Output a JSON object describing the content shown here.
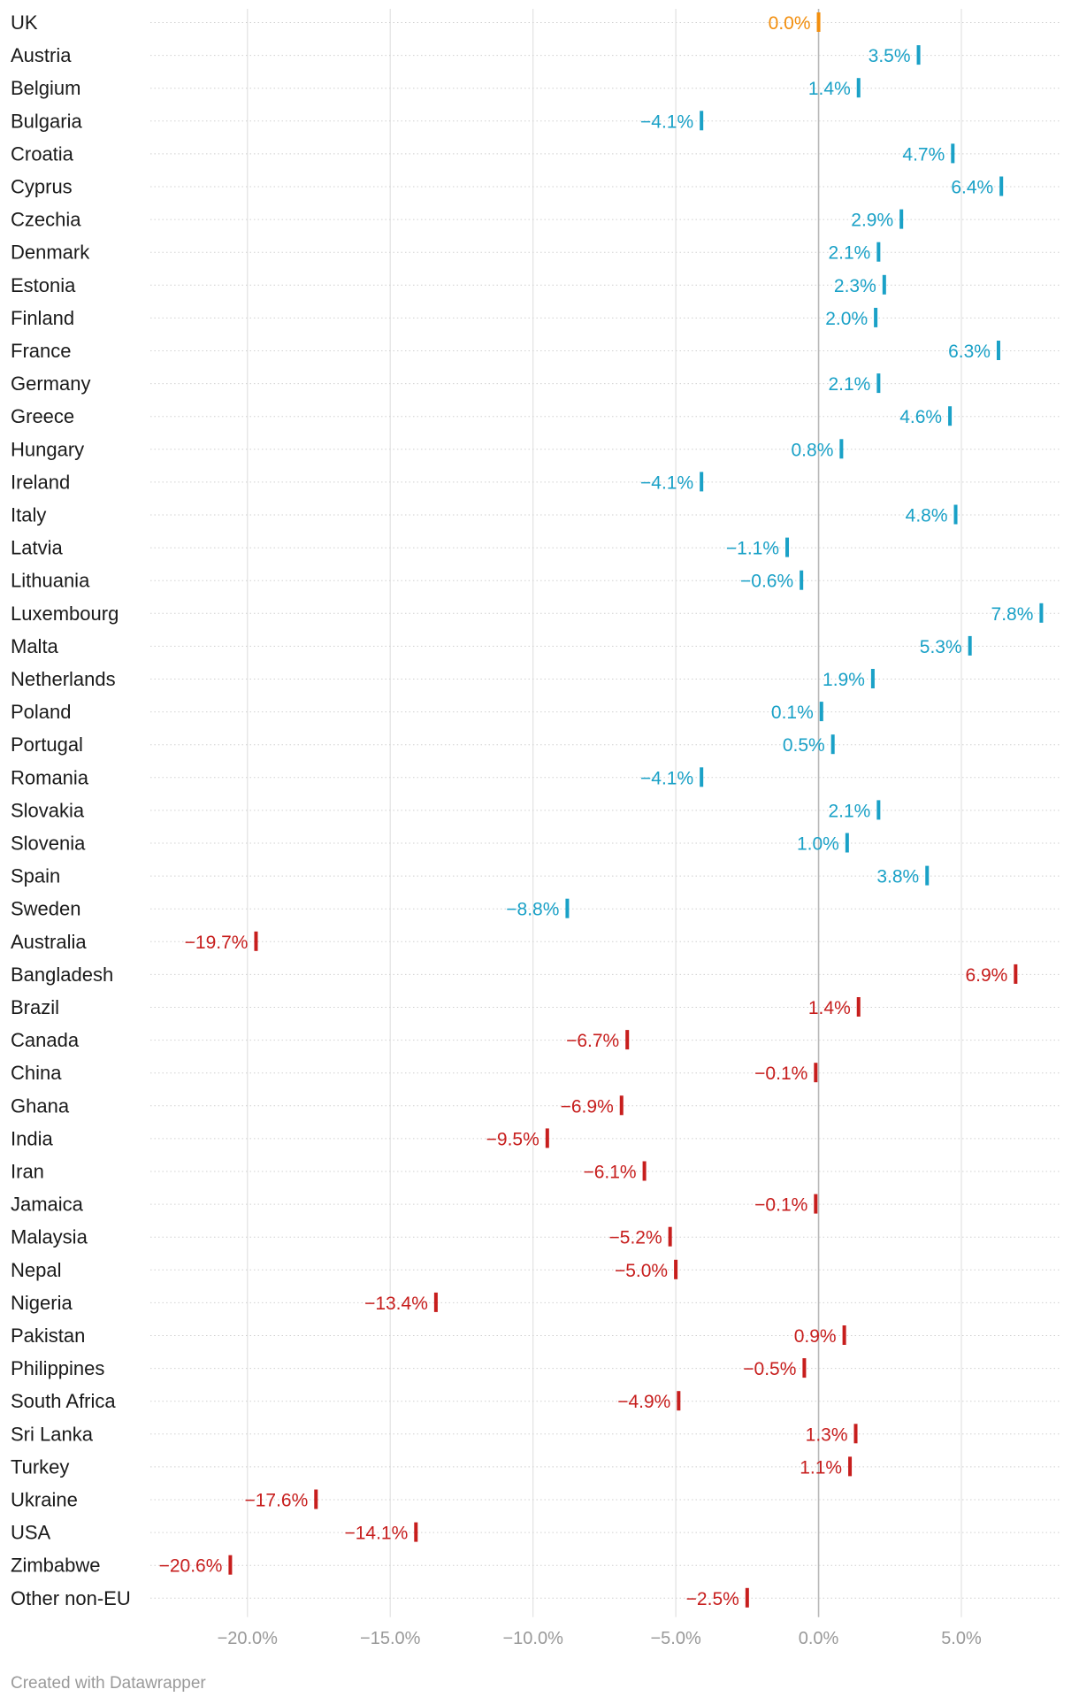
{
  "chart_data": {
    "type": "dot",
    "title": "",
    "xlabel": "",
    "ylabel": "",
    "xlim": [
      -23.4,
      8.5
    ],
    "x_ticks": [
      -20,
      -15,
      -10,
      -5,
      0,
      5
    ],
    "x_tick_labels": [
      "−20.0%",
      "−15.0%",
      "−10.0%",
      "−5.0%",
      "0.0%",
      "5.0%"
    ],
    "grid": true,
    "legend": "none",
    "colors": {
      "uk": "#f28e0d",
      "eu": "#1aa1c7",
      "non_eu": "#c71e1d"
    },
    "rows": [
      {
        "label": "UK",
        "value": 0.0,
        "text": "0.0%",
        "group": "uk"
      },
      {
        "label": "Austria",
        "value": 3.5,
        "text": "3.5%",
        "group": "eu"
      },
      {
        "label": "Belgium",
        "value": 1.4,
        "text": "1.4%",
        "group": "eu"
      },
      {
        "label": "Bulgaria",
        "value": -4.1,
        "text": "−4.1%",
        "group": "eu"
      },
      {
        "label": "Croatia",
        "value": 4.7,
        "text": "4.7%",
        "group": "eu"
      },
      {
        "label": "Cyprus",
        "value": 6.4,
        "text": "6.4%",
        "group": "eu"
      },
      {
        "label": "Czechia",
        "value": 2.9,
        "text": "2.9%",
        "group": "eu"
      },
      {
        "label": "Denmark",
        "value": 2.1,
        "text": "2.1%",
        "group": "eu"
      },
      {
        "label": "Estonia",
        "value": 2.3,
        "text": "2.3%",
        "group": "eu"
      },
      {
        "label": "Finland",
        "value": 2.0,
        "text": "2.0%",
        "group": "eu"
      },
      {
        "label": "France",
        "value": 6.3,
        "text": "6.3%",
        "group": "eu"
      },
      {
        "label": "Germany",
        "value": 2.1,
        "text": "2.1%",
        "group": "eu"
      },
      {
        "label": "Greece",
        "value": 4.6,
        "text": "4.6%",
        "group": "eu"
      },
      {
        "label": "Hungary",
        "value": 0.8,
        "text": "0.8%",
        "group": "eu"
      },
      {
        "label": "Ireland",
        "value": -4.1,
        "text": "−4.1%",
        "group": "eu"
      },
      {
        "label": "Italy",
        "value": 4.8,
        "text": "4.8%",
        "group": "eu"
      },
      {
        "label": "Latvia",
        "value": -1.1,
        "text": "−1.1%",
        "group": "eu"
      },
      {
        "label": "Lithuania",
        "value": -0.6,
        "text": "−0.6%",
        "group": "eu"
      },
      {
        "label": "Luxembourg",
        "value": 7.8,
        "text": "7.8%",
        "group": "eu"
      },
      {
        "label": "Malta",
        "value": 5.3,
        "text": "5.3%",
        "group": "eu"
      },
      {
        "label": "Netherlands",
        "value": 1.9,
        "text": "1.9%",
        "group": "eu"
      },
      {
        "label": "Poland",
        "value": 0.1,
        "text": "0.1%",
        "group": "eu"
      },
      {
        "label": "Portugal",
        "value": 0.5,
        "text": "0.5%",
        "group": "eu"
      },
      {
        "label": "Romania",
        "value": -4.1,
        "text": "−4.1%",
        "group": "eu"
      },
      {
        "label": "Slovakia",
        "value": 2.1,
        "text": "2.1%",
        "group": "eu"
      },
      {
        "label": "Slovenia",
        "value": 1.0,
        "text": "1.0%",
        "group": "eu"
      },
      {
        "label": "Spain",
        "value": 3.8,
        "text": "3.8%",
        "group": "eu"
      },
      {
        "label": "Sweden",
        "value": -8.8,
        "text": "−8.8%",
        "group": "eu"
      },
      {
        "label": "Australia",
        "value": -19.7,
        "text": "−19.7%",
        "group": "non_eu"
      },
      {
        "label": "Bangladesh",
        "value": 6.9,
        "text": "6.9%",
        "group": "non_eu"
      },
      {
        "label": "Brazil",
        "value": 1.4,
        "text": "1.4%",
        "group": "non_eu"
      },
      {
        "label": "Canada",
        "value": -6.7,
        "text": "−6.7%",
        "group": "non_eu"
      },
      {
        "label": "China",
        "value": -0.1,
        "text": "−0.1%",
        "group": "non_eu"
      },
      {
        "label": "Ghana",
        "value": -6.9,
        "text": "−6.9%",
        "group": "non_eu"
      },
      {
        "label": "India",
        "value": -9.5,
        "text": "−9.5%",
        "group": "non_eu"
      },
      {
        "label": "Iran",
        "value": -6.1,
        "text": "−6.1%",
        "group": "non_eu"
      },
      {
        "label": "Jamaica",
        "value": -0.1,
        "text": "−0.1%",
        "group": "non_eu"
      },
      {
        "label": "Malaysia",
        "value": -5.2,
        "text": "−5.2%",
        "group": "non_eu"
      },
      {
        "label": "Nepal",
        "value": -5.0,
        "text": "−5.0%",
        "group": "non_eu"
      },
      {
        "label": "Nigeria",
        "value": -13.4,
        "text": "−13.4%",
        "group": "non_eu"
      },
      {
        "label": "Pakistan",
        "value": 0.9,
        "text": "0.9%",
        "group": "non_eu"
      },
      {
        "label": "Philippines",
        "value": -0.5,
        "text": "−0.5%",
        "group": "non_eu"
      },
      {
        "label": "South Africa",
        "value": -4.9,
        "text": "−4.9%",
        "group": "non_eu"
      },
      {
        "label": "Sri Lanka",
        "value": 1.3,
        "text": "1.3%",
        "group": "non_eu"
      },
      {
        "label": "Turkey",
        "value": 1.1,
        "text": "1.1%",
        "group": "non_eu"
      },
      {
        "label": "Ukraine",
        "value": -17.6,
        "text": "−17.6%",
        "group": "non_eu"
      },
      {
        "label": "USA",
        "value": -14.1,
        "text": "−14.1%",
        "group": "non_eu"
      },
      {
        "label": "Zimbabwe",
        "value": -20.6,
        "text": "−20.6%",
        "group": "non_eu"
      },
      {
        "label": "Other non-EU",
        "value": -2.5,
        "text": "−2.5%",
        "group": "non_eu"
      }
    ]
  },
  "credit": "Created with Datawrapper"
}
